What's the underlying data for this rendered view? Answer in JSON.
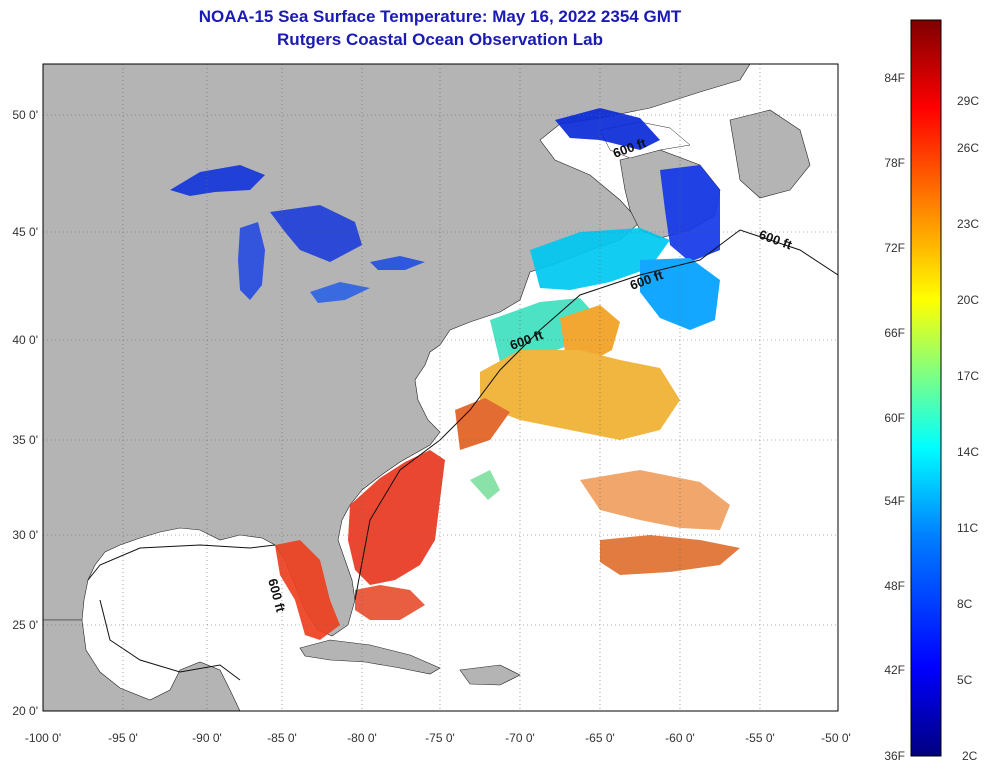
{
  "title_line1": "NOAA-15 Sea Surface Temperature:  May 16, 2022 2354 GMT",
  "title_line2": "Rutgers Coastal Ocean Observation Lab",
  "map": {
    "x_ticks": [
      "-100 0'",
      "-95 0'",
      "-90 0'",
      "-85 0'",
      "-80 0'",
      "-75 0'",
      "-70 0'",
      "-65 0'",
      "-60 0'",
      "-55 0'",
      "-50 0'"
    ],
    "y_ticks": [
      "50 0'",
      "45 0'",
      "40 0'",
      "35 0'",
      "30 0'",
      "25 0'",
      "20 0'"
    ],
    "contour_label": "600 ft",
    "land_color": "#b4b4b4",
    "ocean_color": "#ffffff"
  },
  "colorbar": {
    "f_labels": [
      "84F",
      "78F",
      "72F",
      "66F",
      "60F",
      "54F",
      "48F",
      "42F",
      "36F"
    ],
    "c_labels": [
      "29C",
      "26C",
      "23C",
      "20C",
      "17C",
      "14C",
      "11C",
      "8C",
      "5C",
      "2C"
    ],
    "colors": [
      "#00007f",
      "#0000ff",
      "#0080ff",
      "#00ffff",
      "#80ff80",
      "#ffff00",
      "#ff8000",
      "#ff0000",
      "#7f0000"
    ]
  }
}
